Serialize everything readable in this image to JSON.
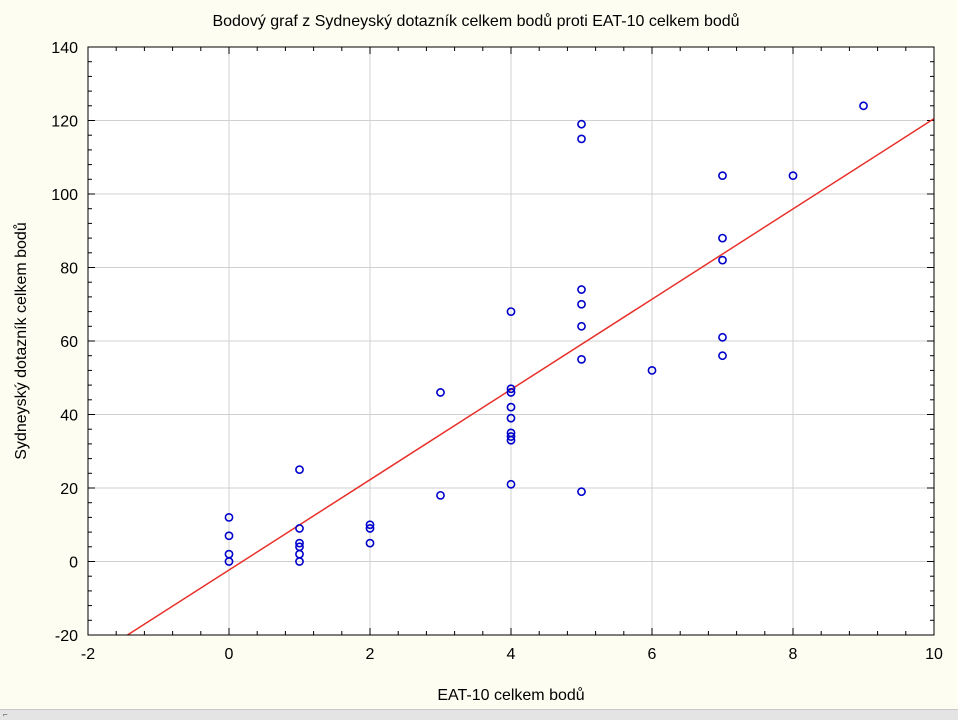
{
  "chart_data": {
    "type": "scatter",
    "title": "Bodový graf z Sydneyský dotazník celkem bodů proti EAT-10 celkem bodů",
    "xlabel": "EAT-10 celkem bodů",
    "ylabel": "Sydneyský dotazník celkem bodů",
    "xlim": [
      -2,
      10
    ],
    "ylim": [
      -20,
      140
    ],
    "xticks": [
      "-2",
      "0",
      "2",
      "4",
      "6",
      "8",
      "10"
    ],
    "yticks": [
      "-20",
      "0",
      "20",
      "40",
      "60",
      "80",
      "100",
      "120",
      "140"
    ],
    "grid": true,
    "legend": "none",
    "colors": {
      "points": "#0000cc",
      "fit_line": "#e8302a",
      "grid": "#d0d0d0",
      "plot_bg": "#ffffff"
    },
    "points": [
      {
        "x": 0,
        "y": 0
      },
      {
        "x": 0,
        "y": 2
      },
      {
        "x": 0,
        "y": 7
      },
      {
        "x": 0,
        "y": 12
      },
      {
        "x": 1,
        "y": 0
      },
      {
        "x": 1,
        "y": 2
      },
      {
        "x": 1,
        "y": 4
      },
      {
        "x": 1,
        "y": 5
      },
      {
        "x": 1,
        "y": 9
      },
      {
        "x": 1,
        "y": 25
      },
      {
        "x": 2,
        "y": 5
      },
      {
        "x": 2,
        "y": 9
      },
      {
        "x": 2,
        "y": 10
      },
      {
        "x": 3,
        "y": 18
      },
      {
        "x": 3,
        "y": 46
      },
      {
        "x": 4,
        "y": 21
      },
      {
        "x": 4,
        "y": 33
      },
      {
        "x": 4,
        "y": 34
      },
      {
        "x": 4,
        "y": 35
      },
      {
        "x": 4,
        "y": 39
      },
      {
        "x": 4,
        "y": 42
      },
      {
        "x": 4,
        "y": 46
      },
      {
        "x": 4,
        "y": 47
      },
      {
        "x": 4,
        "y": 68
      },
      {
        "x": 5,
        "y": 19
      },
      {
        "x": 5,
        "y": 55
      },
      {
        "x": 5,
        "y": 64
      },
      {
        "x": 5,
        "y": 70
      },
      {
        "x": 5,
        "y": 74
      },
      {
        "x": 5,
        "y": 115
      },
      {
        "x": 5,
        "y": 119
      },
      {
        "x": 6,
        "y": 52
      },
      {
        "x": 7,
        "y": 56
      },
      {
        "x": 7,
        "y": 61
      },
      {
        "x": 7,
        "y": 82
      },
      {
        "x": 7,
        "y": 88
      },
      {
        "x": 7,
        "y": 105
      },
      {
        "x": 8,
        "y": 105
      },
      {
        "x": 9,
        "y": 124
      }
    ],
    "fit_line": {
      "x": [
        -1.44,
        10
      ],
      "y": [
        -20,
        120.5
      ]
    }
  }
}
